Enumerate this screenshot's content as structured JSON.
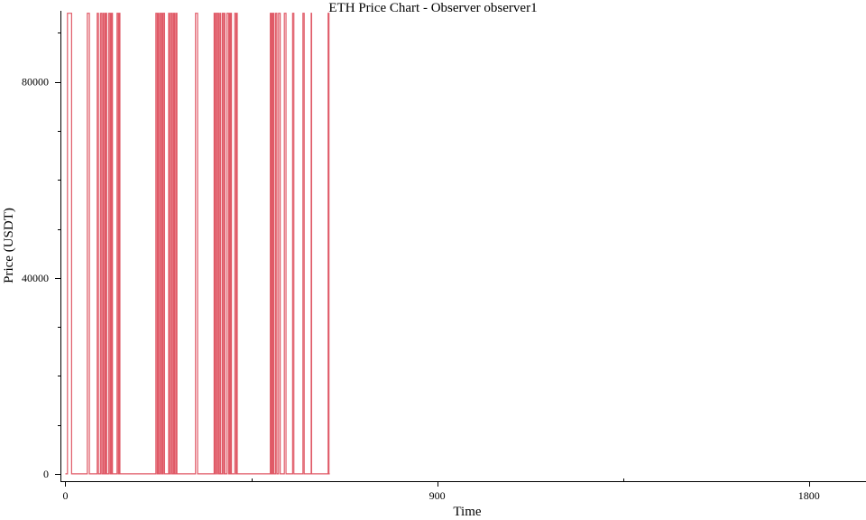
{
  "chart_data": {
    "type": "line",
    "title": "ETH Price Chart - Observer observer1",
    "xlabel": "Time",
    "ylabel": "Price (USDT)",
    "xlim": [
      -12,
      1938
    ],
    "ylim": [
      -1500,
      94500
    ],
    "x_ticks": [
      0,
      900,
      1800
    ],
    "x_minor_ticks": [
      450,
      1350
    ],
    "y_ticks": [
      0,
      40000,
      80000
    ],
    "grid": false,
    "series": [
      {
        "color": "#e05a67",
        "high": 94000,
        "low": 0,
        "x_end": 640,
        "high_intervals": [
          [
            5,
            15
          ],
          [
            53,
            58
          ],
          [
            77,
            80
          ],
          [
            85,
            88
          ],
          [
            91,
            93
          ],
          [
            96,
            97
          ],
          [
            99,
            100
          ],
          [
            105,
            108
          ],
          [
            110,
            112
          ],
          [
            113,
            114
          ],
          [
            125,
            128
          ],
          [
            130,
            132
          ],
          [
            219,
            222
          ],
          [
            224,
            226
          ],
          [
            229,
            232
          ],
          [
            234,
            236
          ],
          [
            237,
            240
          ],
          [
            250,
            252
          ],
          [
            255,
            258
          ],
          [
            261,
            262
          ],
          [
            264,
            265
          ],
          [
            268,
            270
          ],
          [
            315,
            320
          ],
          [
            360,
            362
          ],
          [
            363,
            366
          ],
          [
            368,
            371
          ],
          [
            374,
            376
          ],
          [
            380,
            383
          ],
          [
            384,
            386
          ],
          [
            391,
            395
          ],
          [
            397,
            399
          ],
          [
            400,
            402
          ],
          [
            410,
            413
          ],
          [
            414,
            416
          ],
          [
            496,
            498
          ],
          [
            500,
            501
          ],
          [
            503,
            505
          ],
          [
            509,
            512
          ],
          [
            516,
            520
          ],
          [
            530,
            534
          ],
          [
            550,
            553
          ],
          [
            575,
            578
          ],
          [
            595,
            596
          ],
          [
            636,
            638
          ]
        ]
      }
    ]
  }
}
